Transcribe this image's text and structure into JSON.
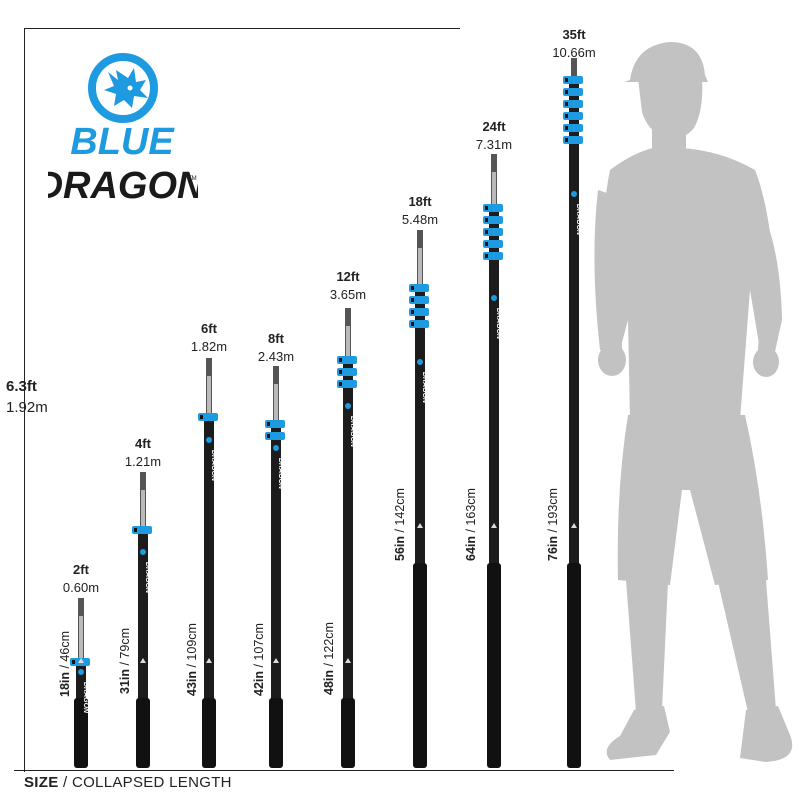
{
  "brand": {
    "line1": "BLUE",
    "line2": "DRAGON",
    "tm": "TM",
    "pole_text": "DRAGON"
  },
  "reference": {
    "height_ft": "6.3ft",
    "height_m": "1.92m"
  },
  "caption": {
    "bold": "SIZE",
    "rest": " / COLLAPSED LENGTH"
  },
  "colors": {
    "accent": "#1e9be0",
    "pole": "#1c1c1c",
    "silhouette": "#c2c2c2"
  },
  "poles": [
    {
      "ft": "2ft",
      "m": "0.60m",
      "collapsed_in": "18in",
      "collapsed_cm": " / 46cm"
    },
    {
      "ft": "4ft",
      "m": "1.21m",
      "collapsed_in": "31in",
      "collapsed_cm": " / 79cm"
    },
    {
      "ft": "6ft",
      "m": "1.82m",
      "collapsed_in": "43in",
      "collapsed_cm": " / 109cm"
    },
    {
      "ft": "8ft",
      "m": "2.43m",
      "collapsed_in": "42in",
      "collapsed_cm": " / 107cm"
    },
    {
      "ft": "12ft",
      "m": "3.65m",
      "collapsed_in": "48in",
      "collapsed_cm": " / 122cm"
    },
    {
      "ft": "18ft",
      "m": "5.48m",
      "collapsed_in": "56in",
      "collapsed_cm": " / 142cm"
    },
    {
      "ft": "24ft",
      "m": "7.31m",
      "collapsed_in": "64in",
      "collapsed_cm": " / 163cm"
    },
    {
      "ft": "35ft",
      "m": "10.66m",
      "collapsed_in": "76in",
      "collapsed_cm": " / 193cm"
    }
  ]
}
